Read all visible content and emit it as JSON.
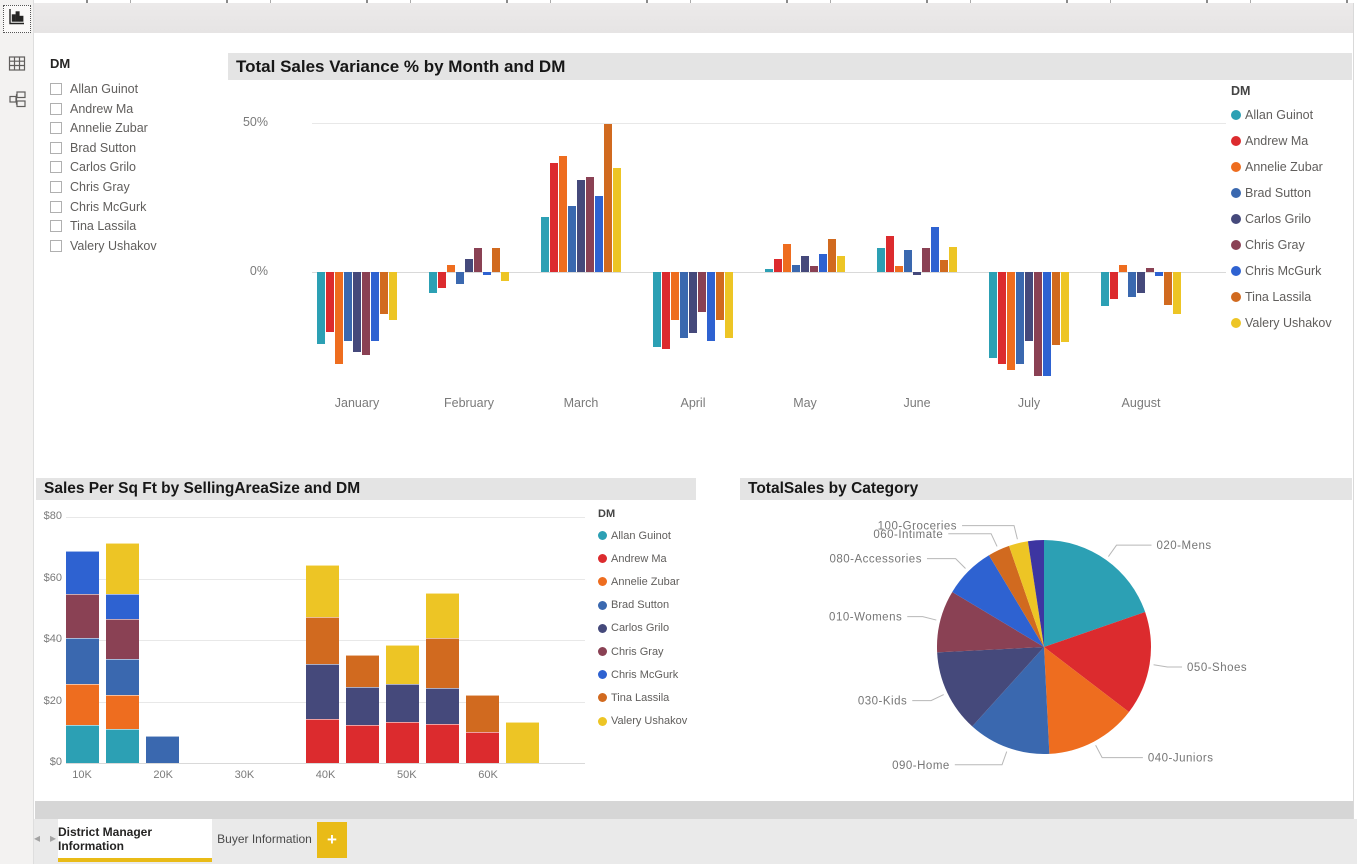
{
  "sidebar": {
    "icons": [
      "report-view",
      "data-view",
      "model-view"
    ]
  },
  "slicer": {
    "title": "DM",
    "items": [
      "Allan Guinot",
      "Andrew Ma",
      "Annelie Zubar",
      "Brad Sutton",
      "Carlos Grilo",
      "Chris Gray",
      "Chris McGurk",
      "Tina Lassila",
      "Valery Ushakov"
    ]
  },
  "tabs": {
    "prev_icon": "◂",
    "next_icon": "▸",
    "active": "District Manager Information",
    "inactive": "Buyer Information",
    "add": "+"
  },
  "colors": {
    "accent_yellow": "#e9bb17",
    "title_bar_bg": "#e4e4e4",
    "axis_text": "#7a7a7a",
    "legend_text": "#605e5c",
    "grid": "#e8e8e8",
    "pie_unlabeled": "#3d35a1"
  },
  "chart_data": [
    {
      "type": "bar",
      "title": "Total Sales Variance % by Month and DM",
      "legend_title": "DM",
      "categories": [
        "January",
        "February",
        "March",
        "April",
        "May",
        "June",
        "July",
        "August"
      ],
      "yticks": [
        {
          "label": "50%",
          "value": 50
        },
        {
          "label": "0%",
          "value": 0
        }
      ],
      "ylim": [
        -40,
        55
      ],
      "series": [
        {
          "name": "Allan Guinot",
          "color": "#2ca0b4",
          "values": [
            -24,
            -7,
            18.5,
            -25,
            1,
            8,
            -29,
            -11.5
          ]
        },
        {
          "name": "Andrew Ma",
          "color": "#dc2b2e",
          "values": [
            -20,
            -5.5,
            36.5,
            -26,
            4.5,
            12,
            -31,
            -9
          ]
        },
        {
          "name": "Annelie Zubar",
          "color": "#ee6d1f",
          "values": [
            -31,
            2.5,
            39,
            -16,
            9.5,
            2,
            -33,
            2.5
          ]
        },
        {
          "name": "Brad Sutton",
          "color": "#3a68af",
          "values": [
            -23,
            -4,
            22,
            -22,
            2.5,
            7.5,
            -31,
            -8.5
          ]
        },
        {
          "name": "Carlos Grilo",
          "color": "#45497b",
          "values": [
            -27,
            4.5,
            31,
            -20.5,
            5.5,
            -1,
            -23,
            -7
          ]
        },
        {
          "name": "Chris Gray",
          "color": "#8a4154",
          "values": [
            -28,
            8,
            32,
            -13.5,
            2,
            8,
            -35,
            1.5
          ]
        },
        {
          "name": "Chris McGurk",
          "color": "#2e62d1",
          "values": [
            -23,
            -1,
            25.5,
            -23,
            6,
            15,
            -35,
            -1.5
          ]
        },
        {
          "name": "Tina Lassila",
          "color": "#d16a1f",
          "values": [
            -14,
            8,
            49.5,
            -16,
            11,
            4,
            -24.5,
            -11
          ]
        },
        {
          "name": "Valery Ushakov",
          "color": "#edc525",
          "values": [
            -16,
            -3,
            35,
            -22,
            5.5,
            8.5,
            -23.5,
            -14
          ]
        }
      ]
    },
    {
      "type": "stacked-bar",
      "title": "Sales Per Sq Ft by SellingAreaSize and DM",
      "legend_title": "DM",
      "x_axis_ticks": [
        "10K",
        "20K",
        "30K",
        "40K",
        "50K",
        "60K"
      ],
      "yticks": [
        {
          "label": "$0",
          "value": 0
        },
        {
          "label": "$20",
          "value": 20
        },
        {
          "label": "$40",
          "value": 40
        },
        {
          "label": "$60",
          "value": 60
        },
        {
          "label": "$80",
          "value": 80
        }
      ],
      "ylim": [
        0,
        80
      ],
      "stacks": [
        {
          "size": "10K",
          "segments": [
            {
              "dm": "Allan Guinot",
              "value": 12.5
            },
            {
              "dm": "Annelie Zubar",
              "value": 13.3
            },
            {
              "dm": "Brad Sutton",
              "value": 15.0
            },
            {
              "dm": "Chris Gray",
              "value": 14.0
            },
            {
              "dm": "Chris McGurk",
              "value": 14.2
            }
          ]
        },
        {
          "size": "15K",
          "segments": [
            {
              "dm": "Allan Guinot",
              "value": 11.2
            },
            {
              "dm": "Annelie Zubar",
              "value": 10.9
            },
            {
              "dm": "Brad Sutton",
              "value": 11.6
            },
            {
              "dm": "Chris Gray",
              "value": 13.1
            },
            {
              "dm": "Chris McGurk",
              "value": 8.2
            },
            {
              "dm": "Valery Ushakov",
              "value": 16.4
            }
          ]
        },
        {
          "size": "20K",
          "segments": [
            {
              "dm": "Brad Sutton",
              "value": 8.7
            }
          ]
        },
        {
          "size": "40K",
          "segments": [
            {
              "dm": "Andrew Ma",
              "value": 14.3
            },
            {
              "dm": "Carlos Grilo",
              "value": 18.0
            },
            {
              "dm": "Tina Lassila",
              "value": 15.2
            },
            {
              "dm": "Valery Ushakov",
              "value": 17.0
            }
          ]
        },
        {
          "size": "45K",
          "segments": [
            {
              "dm": "Andrew Ma",
              "value": 12.2
            },
            {
              "dm": "Carlos Grilo",
              "value": 12.5
            },
            {
              "dm": "Tina Lassila",
              "value": 10.4
            }
          ]
        },
        {
          "size": "50K",
          "segments": [
            {
              "dm": "Andrew Ma",
              "value": 13.4
            },
            {
              "dm": "Carlos Grilo",
              "value": 12.4
            },
            {
              "dm": "Valery Ushakov",
              "value": 12.5
            }
          ]
        },
        {
          "size": "55K",
          "segments": [
            {
              "dm": "Andrew Ma",
              "value": 12.7
            },
            {
              "dm": "Carlos Grilo",
              "value": 11.8
            },
            {
              "dm": "Tina Lassila",
              "value": 16.0
            },
            {
              "dm": "Valery Ushakov",
              "value": 14.7
            }
          ]
        },
        {
          "size": "60K",
          "segments": [
            {
              "dm": "Andrew Ma",
              "value": 10.1
            },
            {
              "dm": "Tina Lassila",
              "value": 12.0
            }
          ]
        },
        {
          "size": "65K",
          "segments": [
            {
              "dm": "Valery Ushakov",
              "value": 13.4
            }
          ]
        }
      ]
    },
    {
      "type": "pie",
      "title": "TotalSales by Category",
      "slices": [
        {
          "label": "020-Mens",
          "pct": 19.7,
          "color": "#2ca0b4"
        },
        {
          "label": "050-Shoes",
          "pct": 15.7,
          "color": "#dc2b2e"
        },
        {
          "label": "040-Juniors",
          "pct": 13.8,
          "color": "#ee6d1f"
        },
        {
          "label": "090-Home",
          "pct": 12.5,
          "color": "#3a68af"
        },
        {
          "label": "030-Kids",
          "pct": 12.5,
          "color": "#45497b"
        },
        {
          "label": "010-Womens",
          "pct": 9.4,
          "color": "#8a4154"
        },
        {
          "label": "080-Accessories",
          "pct": 7.8,
          "color": "#2e62d1"
        },
        {
          "label": "060-Intimate",
          "pct": 3.3,
          "color": "#d16a1f"
        },
        {
          "label": "100-Groceries",
          "pct": 2.9,
          "color": "#edc525"
        },
        {
          "label": "",
          "pct": 2.4,
          "color": "#3d35a1"
        }
      ]
    }
  ]
}
